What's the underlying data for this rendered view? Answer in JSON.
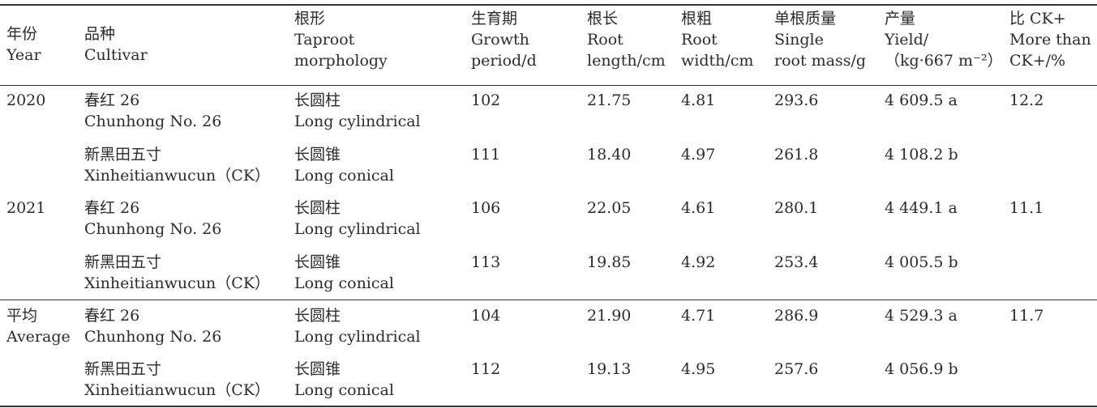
{
  "header": {
    "year": [
      "年份",
      "Year"
    ],
    "cultivar": [
      "品种",
      "Cultivar"
    ],
    "morph": [
      "根形",
      "Taproot",
      "morphology"
    ],
    "growth": [
      "生育期",
      "Growth",
      "period/d"
    ],
    "length": [
      "根长",
      "Root",
      "length/cm"
    ],
    "width": [
      "根粗",
      "Root",
      "width/cm"
    ],
    "mass": [
      "单根质量",
      "Single",
      "root mass/g"
    ],
    "yield": [
      "产量",
      "Yield/",
      "（kg·667 m⁻²）"
    ],
    "more": [
      "比 CK+",
      "More than",
      "CK+/%"
    ]
  },
  "rows": [
    {
      "year": [
        "2020"
      ],
      "cultivar": [
        "春红 26",
        "Chunhong No. 26"
      ],
      "morph": [
        "长圆柱",
        "Long cylindrical"
      ],
      "growth": "102",
      "length": "21.75",
      "width": "4.81",
      "mass": "293.6",
      "yield": "4 609.5 a",
      "more": "12.2"
    },
    {
      "year": [],
      "cultivar": [
        "新黑田五寸",
        "Xinheitianwucun（CK）"
      ],
      "morph": [
        "长圆锥",
        "Long conical"
      ],
      "growth": "111",
      "length": "18.40",
      "width": "4.97",
      "mass": "261.8",
      "yield": "4 108.2 b",
      "more": ""
    },
    {
      "year": [
        "2021"
      ],
      "cultivar": [
        "春红 26",
        "Chunhong No. 26"
      ],
      "morph": [
        "长圆柱",
        "Long cylindrical"
      ],
      "growth": "106",
      "length": "22.05",
      "width": "4.61",
      "mass": "280.1",
      "yield": "4 449.1 a",
      "more": "11.1"
    },
    {
      "year": [],
      "cultivar": [
        "新黑田五寸",
        "Xinheitianwucun（CK）"
      ],
      "morph": [
        "长圆锥",
        "Long conical"
      ],
      "growth": "113",
      "length": "19.85",
      "width": "4.92",
      "mass": "253.4",
      "yield": "4 005.5 b",
      "more": ""
    },
    {
      "year": [
        "平均",
        "Average"
      ],
      "cultivar": [
        "春红 26",
        "Chunhong No. 26"
      ],
      "morph": [
        "长圆柱",
        "Long cylindrical"
      ],
      "growth": "104",
      "length": "21.90",
      "width": "4.71",
      "mass": "286.9",
      "yield": "4 529.3 a",
      "more": "11.7"
    },
    {
      "year": [],
      "cultivar": [
        "新黑田五寸",
        "Xinheitianwucun（CK）"
      ],
      "morph": [
        "长圆锥",
        "Long conical"
      ],
      "growth": "112",
      "length": "19.13",
      "width": "4.95",
      "mass": "257.6",
      "yield": "4 056.9 b",
      "more": ""
    }
  ]
}
